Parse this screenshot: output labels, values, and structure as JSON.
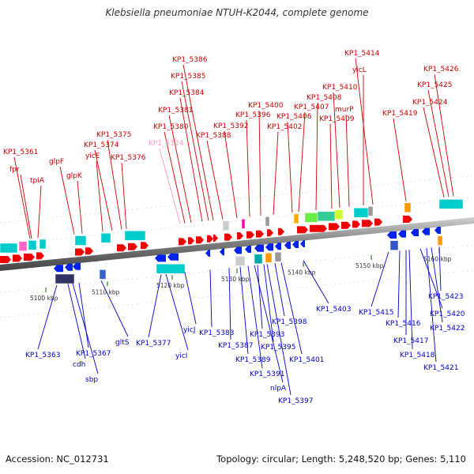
{
  "title": "Klebsiella pneumoniae NTUH-K2044, complete genome",
  "footer": {
    "accession": "Accession: NC_012731",
    "stats": "Topology: circular; Length: 5,248,520 bp; Genes: 5,110"
  },
  "colors": {
    "forward_label": "#cc0000",
    "reverse_label": "#0000cc",
    "pseudo_label": "#ff99cc",
    "forward_gene": "#ee0000",
    "reverse_gene": "#0022ee",
    "backbone": "#888888",
    "tick": "#228822"
  },
  "scale_ticks": [
    "5100 kbp",
    "5110 kbp",
    "5120 kbp",
    "5130 kbp",
    "5140 kbp",
    "5150 kbp",
    "5160 kbp"
  ],
  "top_labels": [
    {
      "text": "KP1_5361",
      "kind": "fwd"
    },
    {
      "text": "fpr",
      "kind": "fwd"
    },
    {
      "text": "tpiA",
      "kind": "fwd"
    },
    {
      "text": "glpF",
      "kind": "fwd"
    },
    {
      "text": "glpK",
      "kind": "fwd"
    },
    {
      "text": "yicE",
      "kind": "fwd"
    },
    {
      "text": "KP1_5374",
      "kind": "fwd"
    },
    {
      "text": "KP1_5375",
      "kind": "fwd"
    },
    {
      "text": "KP1_5376",
      "kind": "fwd"
    },
    {
      "text": "KP1_5124",
      "kind": "pseudo"
    },
    {
      "text": "KP1_5380",
      "kind": "fwd"
    },
    {
      "text": "KP1_5381",
      "kind": "fwd"
    },
    {
      "text": "KP1_5384",
      "kind": "fwd"
    },
    {
      "text": "KP1_5385",
      "kind": "fwd"
    },
    {
      "text": "KP1_5386",
      "kind": "fwd"
    },
    {
      "text": "KP1_5388",
      "kind": "fwd"
    },
    {
      "text": "KP1_5392",
      "kind": "fwd"
    },
    {
      "text": "KP1_5396",
      "kind": "fwd"
    },
    {
      "text": "KP1_5400",
      "kind": "fwd"
    },
    {
      "text": "KP1_5402",
      "kind": "fwd"
    },
    {
      "text": "KP1_5406",
      "kind": "fwd"
    },
    {
      "text": "KP1_5407",
      "kind": "fwd"
    },
    {
      "text": "KP1_5408",
      "kind": "fwd"
    },
    {
      "text": "KP1_5409",
      "kind": "fwd"
    },
    {
      "text": "KP1_5410",
      "kind": "fwd"
    },
    {
      "text": "murP",
      "kind": "fwd"
    },
    {
      "text": "yicL",
      "kind": "fwd"
    },
    {
      "text": "KP1_5414",
      "kind": "fwd"
    },
    {
      "text": "KP1_5419",
      "kind": "fwd"
    },
    {
      "text": "KP1_5424",
      "kind": "fwd"
    },
    {
      "text": "KP1_5425",
      "kind": "fwd"
    },
    {
      "text": "KP1_5426",
      "kind": "fwd"
    }
  ],
  "bottom_labels": [
    {
      "text": "KP1_5363",
      "kind": "rev"
    },
    {
      "text": "cdh",
      "kind": "rev"
    },
    {
      "text": "sbp",
      "kind": "rev"
    },
    {
      "text": "KP1_5367",
      "kind": "rev"
    },
    {
      "text": "gltS",
      "kind": "rev"
    },
    {
      "text": "KP1_5377",
      "kind": "rev"
    },
    {
      "text": "yicI",
      "kind": "rev"
    },
    {
      "text": "yicJ",
      "kind": "rev"
    },
    {
      "text": "KP1_5383",
      "kind": "rev"
    },
    {
      "text": "KP1_5387",
      "kind": "rev"
    },
    {
      "text": "KP1_5389",
      "kind": "rev"
    },
    {
      "text": "KP1_5391",
      "kind": "rev"
    },
    {
      "text": "nlpA",
      "kind": "rev"
    },
    {
      "text": "KP1_5393",
      "kind": "rev"
    },
    {
      "text": "KP1_5395",
      "kind": "rev"
    },
    {
      "text": "KP1_5397",
      "kind": "rev"
    },
    {
      "text": "KP1_5398",
      "kind": "rev"
    },
    {
      "text": "KP1_5401",
      "kind": "rev"
    },
    {
      "text": "KP1_5403",
      "kind": "rev"
    },
    {
      "text": "KP1_5415",
      "kind": "rev"
    },
    {
      "text": "KP1_5416",
      "kind": "rev"
    },
    {
      "text": "KP1_5417",
      "kind": "rev"
    },
    {
      "text": "KP1_5418",
      "kind": "rev"
    },
    {
      "text": "KP1_5420",
      "kind": "rev"
    },
    {
      "text": "KP1_5421",
      "kind": "rev"
    },
    {
      "text": "KP1_5422",
      "kind": "rev"
    },
    {
      "text": "KP1_5423",
      "kind": "rev"
    }
  ]
}
